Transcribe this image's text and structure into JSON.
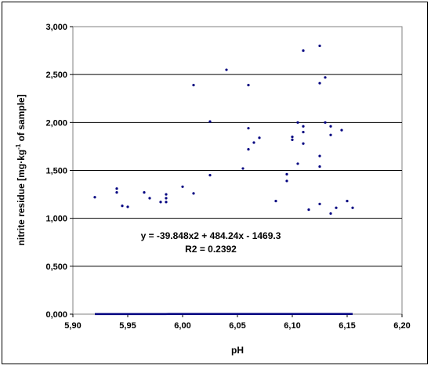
{
  "chart_data": {
    "type": "scatter",
    "xlabel": "pH",
    "ylabel_parts": [
      "nitrite residue [mg",
      "kg",
      "-1",
      " of sample]"
    ],
    "xlim": [
      5.9,
      6.2
    ],
    "ylim": [
      0,
      3000
    ],
    "x_ticks": [
      "5,90",
      "5,95",
      "6,00",
      "6,05",
      "6,10",
      "6,15",
      "6,20"
    ],
    "x_tick_values": [
      5.9,
      5.95,
      6.0,
      6.05,
      6.1,
      6.15,
      6.2
    ],
    "y_ticks": [
      "0,000",
      "0,500",
      "1,000",
      "1,500",
      "2,000",
      "2,500",
      "3,000"
    ],
    "y_tick_values": [
      0,
      500,
      1000,
      1500,
      2000,
      2500,
      3000
    ],
    "grid": "horizontal",
    "point_color": "#000080",
    "trend_color": "#000080",
    "points": [
      [
        5.92,
        1220
      ],
      [
        5.94,
        1310
      ],
      [
        5.94,
        1270
      ],
      [
        5.945,
        1130
      ],
      [
        5.95,
        1120
      ],
      [
        5.965,
        1270
      ],
      [
        5.97,
        1210
      ],
      [
        5.98,
        1170
      ],
      [
        5.985,
        1250
      ],
      [
        5.985,
        1210
      ],
      [
        5.985,
        1170
      ],
      [
        6.0,
        1330
      ],
      [
        6.01,
        1260
      ],
      [
        6.01,
        2390
      ],
      [
        6.025,
        2010
      ],
      [
        6.025,
        1450
      ],
      [
        6.04,
        2550
      ],
      [
        6.055,
        1520
      ],
      [
        6.06,
        2390
      ],
      [
        6.06,
        1940
      ],
      [
        6.06,
        1720
      ],
      [
        6.065,
        1790
      ],
      [
        6.07,
        1840
      ],
      [
        6.085,
        1180
      ],
      [
        6.095,
        1460
      ],
      [
        6.095,
        1390
      ],
      [
        6.1,
        1850
      ],
      [
        6.1,
        1820
      ],
      [
        6.105,
        1570
      ],
      [
        6.105,
        2000
      ],
      [
        6.11,
        1960
      ],
      [
        6.11,
        1900
      ],
      [
        6.11,
        1780
      ],
      [
        6.11,
        2750
      ],
      [
        6.115,
        1090
      ],
      [
        6.125,
        2800
      ],
      [
        6.125,
        2410
      ],
      [
        6.125,
        1650
      ],
      [
        6.125,
        1540
      ],
      [
        6.125,
        1150
      ],
      [
        6.13,
        2470
      ],
      [
        6.13,
        2000
      ],
      [
        6.135,
        1960
      ],
      [
        6.135,
        1870
      ],
      [
        6.135,
        1050
      ],
      [
        6.14,
        1110
      ],
      [
        6.145,
        1920
      ],
      [
        6.15,
        1180
      ],
      [
        6.155,
        1110
      ]
    ],
    "trendline": {
      "type": "polynomial",
      "coefficients": [
        -39.848,
        484.24,
        -1469.3
      ],
      "x_range": [
        5.92,
        6.155
      ]
    },
    "annotations": [
      "y = -39.848x2 + 484.24x - 1469.3",
      "R2 = 0.2392"
    ]
  }
}
